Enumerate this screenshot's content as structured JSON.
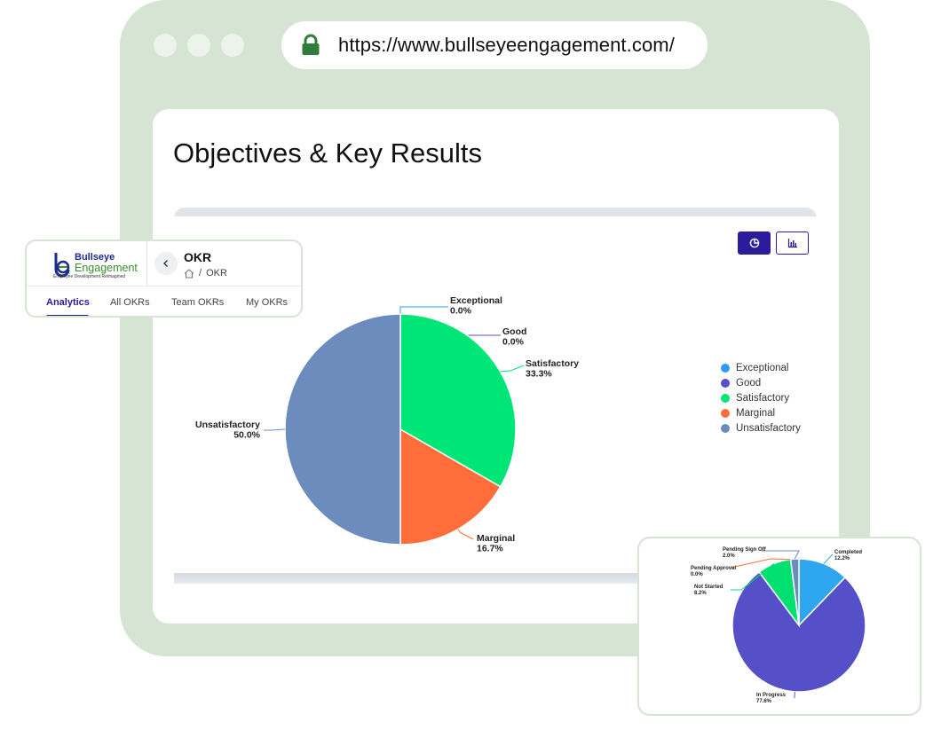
{
  "browser": {
    "url": "https://www.bullseyeengagement.com/"
  },
  "page": {
    "title": "Objectives & Key Results"
  },
  "okr_card": {
    "logo_word1": "Bullseye",
    "logo_word2": "Engagement",
    "logo_tagline": "Employee Development Reimagined",
    "title": "OKR",
    "breadcrumb_separator": "/",
    "breadcrumb_current": "OKR",
    "tabs": [
      {
        "label": "Analytics",
        "active": true
      },
      {
        "label": "All OKRs",
        "active": false
      },
      {
        "label": "Team OKRs",
        "active": false
      },
      {
        "label": "My OKRs",
        "active": false
      }
    ]
  },
  "chart_data": [
    {
      "type": "pie",
      "title": "",
      "categories": [
        "Exceptional",
        "Good",
        "Satisfactory",
        "Marginal",
        "Unsatisfactory"
      ],
      "values": [
        0.0,
        0.0,
        33.3,
        16.7,
        50.0
      ],
      "labels": [
        "0.0%",
        "0.0%",
        "33.3%",
        "16.7%",
        "50.0%"
      ],
      "colors": [
        "#2e9bf5",
        "#5a4fc9",
        "#00e676",
        "#ff6d3a",
        "#6b8cbd"
      ],
      "legend": "right",
      "legend_entries": [
        "Exceptional",
        "Good",
        "Satisfactory",
        "Marginal",
        "Unsatisfactory"
      ]
    },
    {
      "type": "pie",
      "title": "",
      "categories": [
        "Completed",
        "In Progress",
        "Not Started",
        "Pending Approval",
        "Pending Sign Off"
      ],
      "values": [
        12.2,
        77.6,
        8.2,
        0.0,
        2.0
      ],
      "labels": [
        "12.2%",
        "77.6%",
        "8.2%",
        "0.0%",
        "2.0%"
      ],
      "colors": [
        "#2ea6f0",
        "#5650c8",
        "#00e070",
        "#ff6d3a",
        "#6b8cbd"
      ]
    }
  ],
  "icons": {
    "lock": "lock-icon",
    "pie_view": "pie-chart-icon",
    "bar_view": "bar-chart-icon",
    "back": "chevron-left-icon",
    "home": "home-icon"
  },
  "colors": {
    "frame": "#d6e5d3",
    "accent": "#2b1b9d",
    "lock": "#2e7d3a"
  }
}
